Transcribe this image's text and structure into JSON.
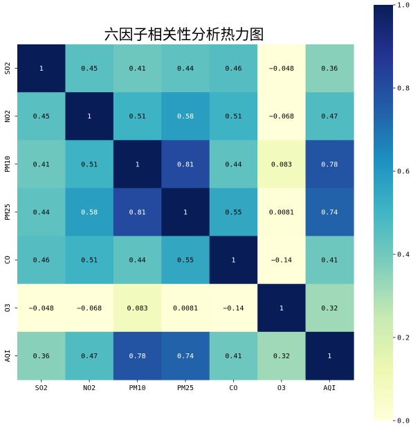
{
  "chart_data": {
    "type": "heatmap",
    "title": "六因子相关性分析热力图",
    "rows": [
      "SO2",
      "NO2",
      "PM10",
      "PM25",
      "CO",
      "O3",
      "AQI"
    ],
    "columns": [
      "SO2",
      "NO2",
      "PM10",
      "PM25",
      "CO",
      "O3",
      "AQI"
    ],
    "values": [
      [
        1,
        0.45,
        0.41,
        0.44,
        0.46,
        -0.048,
        0.36
      ],
      [
        0.45,
        1,
        0.51,
        0.58,
        0.51,
        -0.068,
        0.47
      ],
      [
        0.41,
        0.51,
        1,
        0.81,
        0.44,
        0.083,
        0.78
      ],
      [
        0.44,
        0.58,
        0.81,
        1,
        0.55,
        0.0081,
        0.74
      ],
      [
        0.46,
        0.51,
        0.44,
        0.55,
        1,
        -0.14,
        0.41
      ],
      [
        -0.048,
        -0.068,
        0.083,
        0.0081,
        -0.14,
        1,
        0.32
      ],
      [
        0.36,
        0.47,
        0.78,
        0.74,
        0.41,
        0.32,
        1
      ]
    ],
    "labels": [
      [
        "1",
        "0.45",
        "0.41",
        "0.44",
        "0.46",
        "−0.048",
        "0.36"
      ],
      [
        "0.45",
        "1",
        "0.51",
        "0.58",
        "0.51",
        "−0.068",
        "0.47"
      ],
      [
        "0.41",
        "0.51",
        "1",
        "0.81",
        "0.44",
        "0.083",
        "0.78"
      ],
      [
        "0.44",
        "0.58",
        "0.81",
        "1",
        "0.55",
        "0.0081",
        "0.74"
      ],
      [
        "0.46",
        "0.51",
        "0.44",
        "0.55",
        "1",
        "−0.14",
        "0.41"
      ],
      [
        "−0.048",
        "−0.068",
        "0.083",
        "0.0081",
        "−0.14",
        "1",
        "0.32"
      ],
      [
        "0.36",
        "0.47",
        "0.78",
        "0.74",
        "0.41",
        "0.32",
        "1"
      ]
    ],
    "colormap": "YlGnBu",
    "vmin": 0,
    "vmax": 1,
    "colorbar": {
      "ticks": [
        0,
        0.2,
        0.4,
        0.6,
        0.8,
        1.0
      ],
      "tick_labels": [
        "0.0",
        "0.2",
        "0.4",
        "0.6",
        "0.8",
        "1.0"
      ],
      "placement": "right"
    },
    "colorbar_stops": [
      "#ffffd9",
      "#edf8b1",
      "#c7e9b4",
      "#7fcdbb",
      "#41b6c4",
      "#1d91c0",
      "#225ea8",
      "#253494",
      "#081d58"
    ]
  }
}
